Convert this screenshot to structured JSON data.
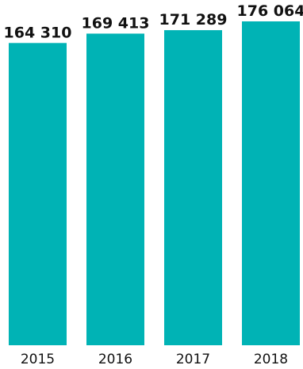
{
  "chart_data": {
    "type": "bar",
    "categories": [
      "2015",
      "2016",
      "2017",
      "2018"
    ],
    "series": [
      {
        "values": [
          164310,
          169413,
          171289,
          176064
        ],
        "labels": [
          "164 310",
          "169 413",
          "171 289",
          "176 064"
        ]
      }
    ],
    "ylim": [
      0,
      176064
    ],
    "grid": false,
    "legend": "none",
    "colors": {
      "bar": "#00b3b5",
      "text": "#111111"
    }
  }
}
